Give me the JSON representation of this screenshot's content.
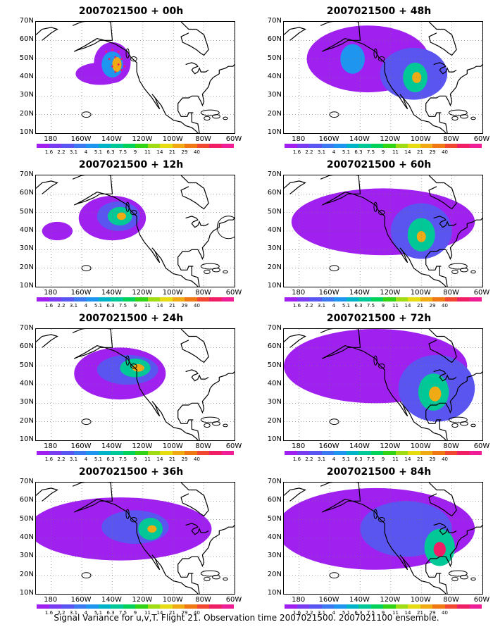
{
  "panels": [
    {
      "title": "2007021500 + 00h",
      "blobs": [
        {
          "cx": -140,
          "cy": 48,
          "rx": 12,
          "ry": 11,
          "level": 0
        },
        {
          "cx": -148,
          "cy": 42,
          "rx": 16,
          "ry": 6,
          "level": 0
        },
        {
          "cx": -140,
          "cy": 47,
          "rx": 7,
          "ry": 7,
          "level": 2
        },
        {
          "cx": -137,
          "cy": 47,
          "rx": 3,
          "ry": 4,
          "level": 5
        }
      ],
      "circle": null,
      "markers": "flight"
    },
    {
      "title": "2007021500 + 48h",
      "blobs": [
        {
          "cx": -135,
          "cy": 50,
          "rx": 40,
          "ry": 18,
          "level": 0
        },
        {
          "cx": -105,
          "cy": 42,
          "rx": 22,
          "ry": 14,
          "level": 1
        },
        {
          "cx": -145,
          "cy": 50,
          "rx": 8,
          "ry": 8,
          "level": 2
        },
        {
          "cx": -104,
          "cy": 40,
          "rx": 8,
          "ry": 8,
          "level": 3
        },
        {
          "cx": -103,
          "cy": 40,
          "rx": 3,
          "ry": 3,
          "level": 5
        }
      ],
      "circle": null,
      "markers": null
    },
    {
      "title": "2007021500 + 12h",
      "blobs": [
        {
          "cx": -140,
          "cy": 47,
          "rx": 22,
          "ry": 12,
          "level": 0
        },
        {
          "cx": -176,
          "cy": 40,
          "rx": 10,
          "ry": 5,
          "level": 0
        },
        {
          "cx": -136,
          "cy": 48,
          "rx": 14,
          "ry": 8,
          "level": 1
        },
        {
          "cx": -135,
          "cy": 48,
          "rx": 8,
          "ry": 5,
          "level": 3
        },
        {
          "cx": -134,
          "cy": 48,
          "rx": 3,
          "ry": 2,
          "level": 5
        }
      ],
      "circle": {
        "lon": -64,
        "lat": 42,
        "r": 16
      },
      "markers": null
    },
    {
      "title": "2007021500 + 60h",
      "blobs": [
        {
          "cx": -125,
          "cy": 45,
          "rx": 60,
          "ry": 18,
          "level": 0
        },
        {
          "cx": -100,
          "cy": 40,
          "rx": 20,
          "ry": 15,
          "level": 1
        },
        {
          "cx": -100,
          "cy": 38,
          "rx": 9,
          "ry": 9,
          "level": 3
        },
        {
          "cx": -100,
          "cy": 37,
          "rx": 3,
          "ry": 3,
          "level": 5
        }
      ],
      "circle": null,
      "markers": null
    },
    {
      "title": "2007021500 + 24h",
      "blobs": [
        {
          "cx": -135,
          "cy": 46,
          "rx": 30,
          "ry": 14,
          "level": 0
        },
        {
          "cx": -130,
          "cy": 48,
          "rx": 20,
          "ry": 8,
          "level": 1
        },
        {
          "cx": -125,
          "cy": 49,
          "rx": 10,
          "ry": 5,
          "level": 3
        },
        {
          "cx": -123,
          "cy": 49,
          "rx": 4,
          "ry": 2,
          "level": 5
        }
      ],
      "circle": null,
      "markers": null
    },
    {
      "title": "2007021500 + 72h",
      "blobs": [
        {
          "cx": -130,
          "cy": 50,
          "rx": 60,
          "ry": 20,
          "level": 0
        },
        {
          "cx": -90,
          "cy": 38,
          "rx": 25,
          "ry": 18,
          "level": 1
        },
        {
          "cx": -92,
          "cy": 36,
          "rx": 10,
          "ry": 10,
          "level": 3
        },
        {
          "cx": -91,
          "cy": 35,
          "rx": 4,
          "ry": 4,
          "level": 5
        }
      ],
      "circle": null,
      "markers": null
    },
    {
      "title": "2007021500 + 36h",
      "blobs": [
        {
          "cx": -135,
          "cy": 45,
          "rx": 60,
          "ry": 17,
          "level": 0
        },
        {
          "cx": -125,
          "cy": 46,
          "rx": 22,
          "ry": 9,
          "level": 1
        },
        {
          "cx": -115,
          "cy": 45,
          "rx": 8,
          "ry": 6,
          "level": 3
        },
        {
          "cx": -114,
          "cy": 45,
          "rx": 3,
          "ry": 2,
          "level": 5
        }
      ],
      "circle": null,
      "markers": null
    },
    {
      "title": "2007021500 + 84h",
      "blobs": [
        {
          "cx": -130,
          "cy": 45,
          "rx": 65,
          "ry": 22,
          "level": 0
        },
        {
          "cx": -110,
          "cy": 45,
          "rx": 30,
          "ry": 15,
          "level": 1
        },
        {
          "cx": -88,
          "cy": 35,
          "rx": 10,
          "ry": 10,
          "level": 3
        },
        {
          "cx": -88,
          "cy": 34,
          "rx": 4,
          "ry": 4,
          "level": 6
        }
      ],
      "circle": null,
      "markers": null
    }
  ],
  "lat_labels": [
    "70N",
    "60N",
    "50N",
    "40N",
    "30N",
    "20N",
    "10N"
  ],
  "lon_labels": [
    "180",
    "160W",
    "140W",
    "120W",
    "100W",
    "80W",
    "60W"
  ],
  "colorbar": {
    "colors": [
      "#a020f0",
      "#7a3cf0",
      "#5a55f0",
      "#3c78f0",
      "#1e96f0",
      "#00b4c8",
      "#00c896",
      "#00d25a",
      "#32d214",
      "#a0dc14",
      "#e6dc14",
      "#f0aa14",
      "#f07814",
      "#f04632",
      "#f01e64",
      "#f01e96"
    ],
    "ticks": [
      "1.6",
      "2.2",
      "3.1",
      "4",
      "5.1",
      "6.3",
      "7.5",
      "9",
      "11",
      "14",
      "21",
      "29",
      "40"
    ]
  },
  "levels": [
    "#a020f0",
    "#5a55f0",
    "#1e96f0",
    "#00c896",
    "#32d214",
    "#f0aa14",
    "#f01e64"
  ],
  "caption": "Signal Variance for u,v,T. Flight 21. Observation time 2007021500. 2007021100 ensemble."
}
